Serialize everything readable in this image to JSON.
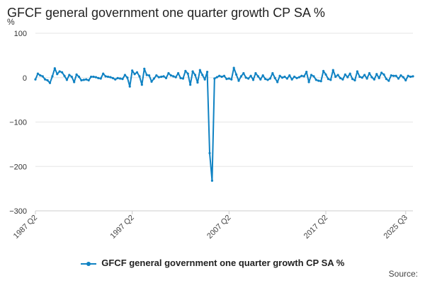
{
  "chart_data": {
    "type": "line",
    "title": "GFCF general government one quarter growth CP SA %",
    "ylabel": "%",
    "xlabel": "",
    "ylim": [
      -300,
      100
    ],
    "yticks": [
      100,
      0,
      -100,
      -200,
      -300
    ],
    "grid": true,
    "legend_position": "bottom",
    "source_label": "Source:",
    "x_tick_labels": [
      "1987 Q2",
      "1997 Q2",
      "2007 Q2",
      "2017 Q2",
      "2025 Q3"
    ],
    "series": [
      {
        "name": "GFCF general government one quarter growth CP SA %",
        "color": "#0f82c3",
        "start_period": "1987 Q2",
        "values": [
          -4,
          9,
          5,
          3,
          -4,
          -6,
          -12,
          3,
          21,
          8,
          14,
          12,
          4,
          -5,
          6,
          2,
          -10,
          7,
          2,
          -6,
          -5,
          -4,
          -6,
          2,
          2,
          1,
          -1,
          -2,
          9,
          3,
          2,
          1,
          -1,
          -4,
          -1,
          -2,
          -3,
          6,
          0,
          -20,
          16,
          8,
          12,
          3,
          -16,
          20,
          6,
          5,
          -9,
          -2,
          5,
          1,
          2,
          3,
          -1,
          10,
          5,
          3,
          1,
          10,
          -1,
          -2,
          15,
          9,
          -16,
          14,
          6,
          -11,
          17,
          6,
          -4,
          13,
          -170,
          -232,
          -2,
          1,
          4,
          2,
          4,
          -3,
          -2,
          -4,
          22,
          7,
          -7,
          3,
          10,
          0,
          -2,
          4,
          -5,
          10,
          3,
          -4,
          5,
          -3,
          -5,
          -2,
          10,
          -1,
          -10,
          4,
          0,
          2,
          -2,
          5,
          -4,
          2,
          -1,
          1,
          4,
          3,
          13,
          -10,
          6,
          3,
          -5,
          -7,
          -8,
          15,
          7,
          -3,
          -5,
          17,
          2,
          6,
          -1,
          -4,
          7,
          1,
          9,
          -3,
          -6,
          14,
          2,
          0,
          6,
          -2,
          10,
          1,
          -4,
          8,
          -1,
          11,
          7,
          -3,
          -7,
          5,
          4,
          4,
          -2,
          5,
          1,
          -6,
          4,
          2,
          3
        ]
      }
    ]
  }
}
